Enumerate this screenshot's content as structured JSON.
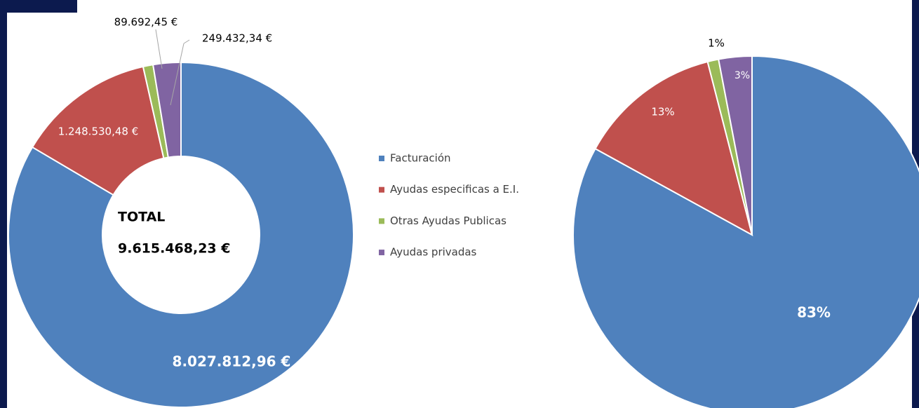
{
  "chart_data": [
    {
      "type": "donut",
      "categories": [
        "Facturación",
        "Ayudas especificas a E.I.",
        "Otras Ayudas Publicas",
        "Ayudas privadas"
      ],
      "values": [
        8027812.96,
        1248530.48,
        89692.45,
        249432.34
      ],
      "value_labels": [
        "8.027.812,96 €",
        "1.248.530,48 €",
        "89.692,45 €",
        "249.432,34 €"
      ],
      "colors": [
        "#4f81bd",
        "#c0504d",
        "#9bbb59",
        "#8064a2"
      ],
      "annotations": [
        "TOTAL",
        "9.615.468,23 €"
      ],
      "legend": "center"
    },
    {
      "type": "pie",
      "values": [
        83,
        13,
        1,
        3
      ],
      "value_labels": [
        "83%",
        "13%",
        "1%",
        "3%"
      ],
      "colors": [
        "#4f81bd",
        "#c0504d",
        "#9bbb59",
        "#8064a2"
      ]
    }
  ]
}
